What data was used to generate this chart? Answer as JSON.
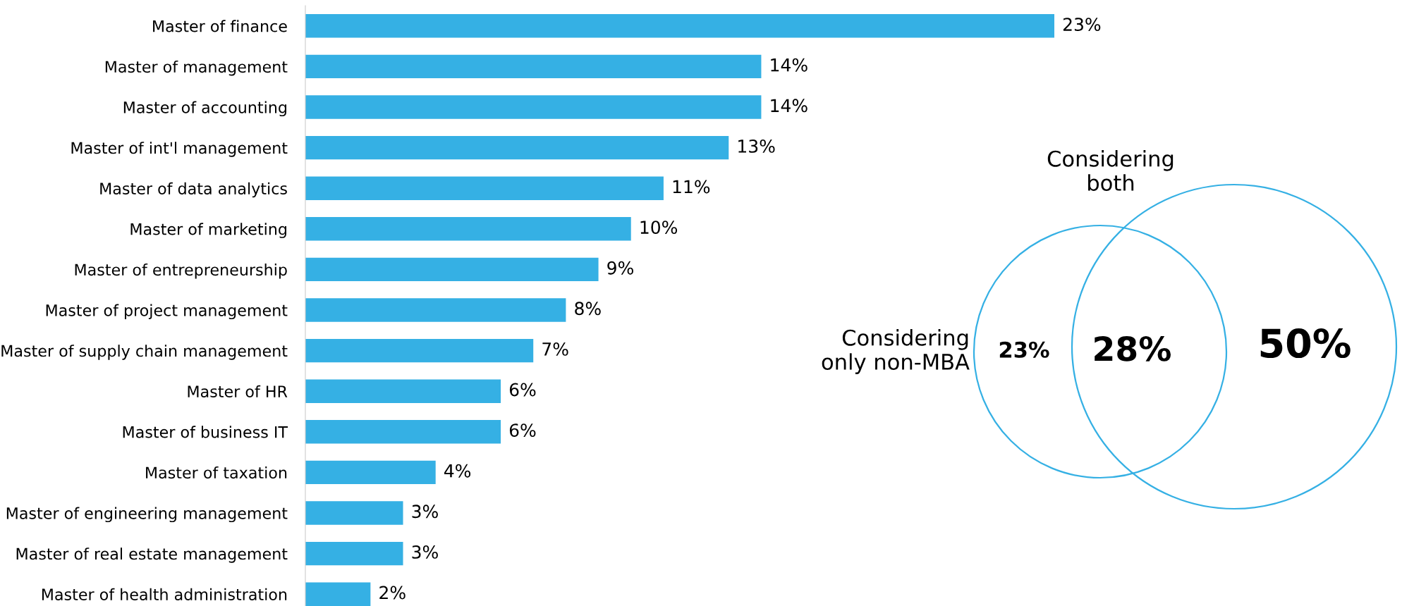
{
  "chart_data": [
    {
      "type": "bar",
      "orientation": "horizontal",
      "color": "#35b0e4",
      "categories": [
        "Master of finance",
        "Master of management",
        "Master of accounting",
        "Master of int'l management",
        "Master of data analytics",
        "Master of marketing",
        "Master of entrepreneurship",
        "Master of project management",
        "Master of supply chain management",
        "Master of HR",
        "Master of business IT",
        "Master of taxation",
        "Master of engineering management",
        "Master of real estate management",
        "Master of health administration"
      ],
      "values": [
        23,
        14,
        14,
        13,
        11,
        10,
        9,
        8,
        7,
        6,
        6,
        4,
        3,
        3,
        2
      ],
      "value_labels": [
        "23%",
        "14%",
        "14%",
        "13%",
        "11%",
        "10%",
        "9%",
        "8%",
        "7%",
        "6%",
        "6%",
        "4%",
        "3%",
        "3%",
        "2%"
      ],
      "grid": false,
      "legend": false
    },
    {
      "type": "other",
      "color": "#35b0e4",
      "annotations": [
        "Considering\nonly non-MBA",
        "Considering\nboth",
        "23%",
        "28%",
        "50%"
      ]
    }
  ]
}
